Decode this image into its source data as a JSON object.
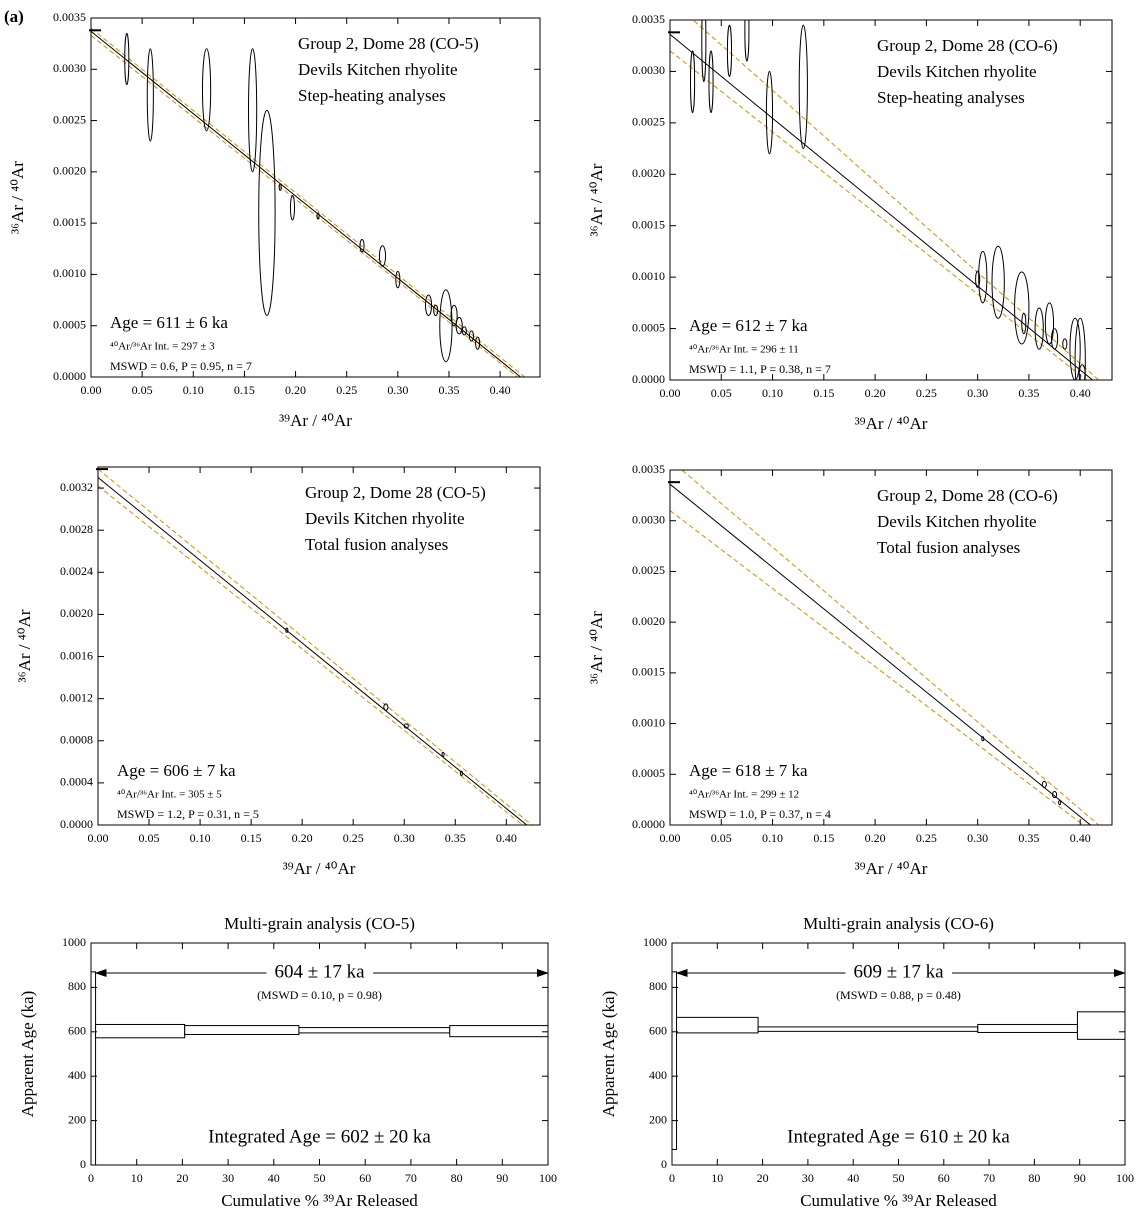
{
  "panel_label": "(a)",
  "chart_data": [
    {
      "type": "scatter",
      "titles": [
        "Group 2, Dome 28 (CO-5)",
        "Devils Kitchen rhyolite",
        "Step-heating analyses"
      ],
      "age_text": "Age = 611 ± 6 ka",
      "intercept_text": "⁴⁰Ar/³⁶Ar Int. =  297 ± 3",
      "stats_text": "MSWD = 0.6, P = 0.95, n = 7",
      "x_label": "³⁹Ar / ⁴⁰Ar",
      "y_label": "³⁶Ar / ⁴⁰Ar",
      "x": [
        0.035,
        0.058,
        0.113,
        0.158,
        0.172,
        0.185,
        0.197,
        0.222,
        0.265,
        0.285,
        0.3,
        0.33,
        0.337,
        0.347,
        0.355,
        0.36,
        0.365,
        0.372,
        0.378
      ],
      "x_err": [
        0.002,
        0.003,
        0.004,
        0.004,
        0.008,
        0.001,
        0.002,
        0.001,
        0.002,
        0.003,
        0.002,
        0.003,
        0.002,
        0.006,
        0.003,
        0.003,
        0.002,
        0.002,
        0.002
      ],
      "y": [
        0.0031,
        0.00275,
        0.0028,
        0.0026,
        0.0016,
        0.00185,
        0.00165,
        0.00157,
        0.00128,
        0.00118,
        0.00095,
        0.0007,
        0.00065,
        0.0005,
        0.0006,
        0.0005,
        0.00045,
        0.0004,
        0.00033
      ],
      "y_err": [
        0.00025,
        0.00045,
        0.0004,
        0.0006,
        0.001,
        3e-05,
        0.00012,
        3e-05,
        6e-05,
        0.0001,
        8e-05,
        0.0001,
        5e-05,
        0.00035,
        0.0001,
        8e-05,
        4e-05,
        5e-05,
        6e-05
      ],
      "fit": {
        "y_intercept": 0.00337,
        "x_intercept": 0.42
      },
      "envelope": [
        {
          "y_intercept": 0.0034,
          "x_intercept": 0.424
        },
        {
          "y_intercept": 0.00333,
          "x_intercept": 0.417
        }
      ],
      "atmosphere": 0.00338,
      "fit_color": "#000000",
      "envelope_color": "#d4900a",
      "xlim": [
        0,
        0.439
      ],
      "ylim": [
        0,
        0.0035
      ],
      "xticks": [
        {
          "value": 0,
          "label": "0.00"
        },
        {
          "value": 0.05,
          "label": "0.05"
        },
        {
          "value": 0.1,
          "label": "0.10"
        },
        {
          "value": 0.15,
          "label": "0.15"
        },
        {
          "value": 0.2,
          "label": "0.20"
        },
        {
          "value": 0.25,
          "label": "0.25"
        },
        {
          "value": 0.3,
          "label": "0.30"
        },
        {
          "value": 0.35,
          "label": "0.35"
        },
        {
          "value": 0.4,
          "label": "0.40"
        }
      ],
      "yticks": [
        {
          "value": 0,
          "label": "0.0000"
        },
        {
          "value": 0.0005,
          "label": "0.0005"
        },
        {
          "value": 0.001,
          "label": "0.0010"
        },
        {
          "value": 0.0015,
          "label": "0.0015"
        },
        {
          "value": 0.002,
          "label": "0.0020"
        },
        {
          "value": 0.0025,
          "label": "0.0025"
        },
        {
          "value": 0.003,
          "label": "0.0030"
        },
        {
          "value": 0.0035,
          "label": "0.0035"
        }
      ]
    },
    {
      "type": "scatter",
      "titles": [
        "Group 2, Dome 28 (CO-6)",
        "Devils Kitchen rhyolite",
        "Step-heating analyses"
      ],
      "age_text": "Age = 612 ± 7 ka",
      "intercept_text": "⁴⁰Ar/³⁶Ar Int. =  296 ± 11",
      "stats_text": "MSWD = 1.1, P = 0.38, n = 7",
      "x_label": "³⁹Ar / ⁴⁰Ar",
      "y_label": "³⁶Ar / ⁴⁰Ar",
      "x": [
        0.022,
        0.033,
        0.04,
        0.058,
        0.075,
        0.097,
        0.13,
        0.3,
        0.305,
        0.32,
        0.343,
        0.345,
        0.36,
        0.37,
        0.375,
        0.385,
        0.395,
        0.4,
        0.402
      ],
      "x_err": [
        0.002,
        0.002,
        0.002,
        0.002,
        0.002,
        0.003,
        0.004,
        0.002,
        0.004,
        0.006,
        0.007,
        0.002,
        0.004,
        0.004,
        0.003,
        0.002,
        0.005,
        0.005,
        0.003
      ],
      "y": [
        0.0029,
        0.0033,
        0.0029,
        0.0032,
        0.0034,
        0.0026,
        0.00285,
        0.00098,
        0.001,
        0.00095,
        0.0007,
        0.00055,
        0.0005,
        0.00055,
        0.0004,
        0.00035,
        0.0003,
        0.0002,
        5e-05
      ],
      "y_err": [
        0.0003,
        0.0004,
        0.0003,
        0.00025,
        0.0003,
        0.0004,
        0.0006,
        8e-05,
        0.00025,
        0.00035,
        0.00035,
        0.0001,
        0.0002,
        0.0002,
        0.0001,
        5e-05,
        0.0003,
        0.0004,
        0.0001
      ],
      "fit": {
        "y_intercept": 0.00336,
        "x_intercept": 0.412
      },
      "envelope": [
        {
          "y_intercept": 0.0037,
          "x_intercept": 0.418
        },
        {
          "y_intercept": 0.0032,
          "x_intercept": 0.406
        }
      ],
      "atmosphere": 0.00338,
      "fit_color": "#000000",
      "envelope_color": "#d4900a",
      "xlim": [
        0,
        0.431
      ],
      "ylim": [
        0,
        0.0035
      ],
      "xticks": [
        {
          "value": 0,
          "label": "0.00"
        },
        {
          "value": 0.05,
          "label": "0.05"
        },
        {
          "value": 0.1,
          "label": "0.10"
        },
        {
          "value": 0.15,
          "label": "0.15"
        },
        {
          "value": 0.2,
          "label": "0.20"
        },
        {
          "value": 0.25,
          "label": "0.25"
        },
        {
          "value": 0.3,
          "label": "0.30"
        },
        {
          "value": 0.35,
          "label": "0.35"
        },
        {
          "value": 0.4,
          "label": "0.40"
        }
      ],
      "yticks": [
        {
          "value": 0,
          "label": "0.0000"
        },
        {
          "value": 0.0005,
          "label": "0.0005"
        },
        {
          "value": 0.001,
          "label": "0.0010"
        },
        {
          "value": 0.0015,
          "label": "0.0015"
        },
        {
          "value": 0.002,
          "label": "0.0020"
        },
        {
          "value": 0.0025,
          "label": "0.0025"
        },
        {
          "value": 0.003,
          "label": "0.0030"
        },
        {
          "value": 0.0035,
          "label": "0.0035"
        }
      ]
    },
    {
      "type": "scatter",
      "titles": [
        "Group 2, Dome 28 (CO-5)",
        "Devils Kitchen rhyolite",
        "Total fusion analyses"
      ],
      "age_text": "Age = 606 ± 7 ka",
      "intercept_text": "⁴⁰Ar/³⁶Ar Int. =  305 ± 5",
      "stats_text": "MSWD = 1.2, P = 0.31, n = 5",
      "x_label": "³⁹Ar / ⁴⁰Ar",
      "y_label": "³⁶Ar / ⁴⁰Ar",
      "x": [
        0.185,
        0.282,
        0.302,
        0.338,
        0.356
      ],
      "x_err": [
        0.001,
        0.002,
        0.002,
        0.001,
        0.001
      ],
      "y": [
        0.00185,
        0.00112,
        0.00094,
        0.00067,
        0.00049
      ],
      "y_err": [
        2e-05,
        3e-05,
        2e-05,
        2e-05,
        2e-05
      ],
      "fit": {
        "y_intercept": 0.0033,
        "x_intercept": 0.42
      },
      "envelope": [
        {
          "y_intercept": 0.00338,
          "x_intercept": 0.425
        },
        {
          "y_intercept": 0.00322,
          "x_intercept": 0.416
        }
      ],
      "atmosphere": 0.00338,
      "fit_color": "#000000",
      "envelope_color": "#d4900a",
      "xlim": [
        0,
        0.433
      ],
      "ylim": [
        0,
        0.0034
      ],
      "xticks": [
        {
          "value": 0,
          "label": "0.00"
        },
        {
          "value": 0.05,
          "label": "0.05"
        },
        {
          "value": 0.1,
          "label": "0.10"
        },
        {
          "value": 0.15,
          "label": "0.15"
        },
        {
          "value": 0.2,
          "label": "0.20"
        },
        {
          "value": 0.25,
          "label": "0.25"
        },
        {
          "value": 0.3,
          "label": "0.30"
        },
        {
          "value": 0.35,
          "label": "0.35"
        },
        {
          "value": 0.4,
          "label": "0.40"
        }
      ],
      "yticks": [
        {
          "value": 0,
          "label": "0.0000"
        },
        {
          "value": 0.0004,
          "label": "0.0004"
        },
        {
          "value": 0.0008,
          "label": "0.0008"
        },
        {
          "value": 0.0012,
          "label": "0.0012"
        },
        {
          "value": 0.0016,
          "label": "0.0016"
        },
        {
          "value": 0.002,
          "label": "0.0020"
        },
        {
          "value": 0.0024,
          "label": "0.0024"
        },
        {
          "value": 0.0028,
          "label": "0.0028"
        },
        {
          "value": 0.0032,
          "label": "0.0032"
        }
      ]
    },
    {
      "type": "scatter",
      "titles": [
        "Group 2, Dome 28 (CO-6)",
        "Devils Kitchen rhyolite",
        "Total fusion analyses"
      ],
      "age_text": "Age = 618 ± 7 ka",
      "intercept_text": "⁴⁰Ar/³⁶Ar Int. =  299 ± 12",
      "stats_text": "MSWD = 1.0, P = 0.37, n = 4",
      "x_label": "³⁹Ar / ⁴⁰Ar",
      "y_label": "³⁶Ar / ⁴⁰Ar",
      "x": [
        0.305,
        0.365,
        0.375,
        0.38
      ],
      "x_err": [
        0.001,
        0.002,
        0.002,
        0.001
      ],
      "y": [
        0.00085,
        0.0004,
        0.0003,
        0.00022
      ],
      "y_err": [
        2e-05,
        3e-05,
        3e-05,
        2e-05
      ],
      "fit": {
        "y_intercept": 0.00336,
        "x_intercept": 0.41
      },
      "envelope": [
        {
          "y_intercept": 0.0036,
          "x_intercept": 0.418
        },
        {
          "y_intercept": 0.0031,
          "x_intercept": 0.403
        }
      ],
      "atmosphere": 0.00338,
      "fit_color": "#000000",
      "envelope_color": "#d4900a",
      "xlim": [
        0,
        0.431
      ],
      "ylim": [
        0,
        0.0035
      ],
      "xticks": [
        {
          "value": 0,
          "label": "0.00"
        },
        {
          "value": 0.05,
          "label": "0.05"
        },
        {
          "value": 0.1,
          "label": "0.10"
        },
        {
          "value": 0.15,
          "label": "0.15"
        },
        {
          "value": 0.2,
          "label": "0.20"
        },
        {
          "value": 0.25,
          "label": "0.25"
        },
        {
          "value": 0.3,
          "label": "0.30"
        },
        {
          "value": 0.35,
          "label": "0.35"
        },
        {
          "value": 0.4,
          "label": "0.40"
        }
      ],
      "yticks": [
        {
          "value": 0,
          "label": "0.0000"
        },
        {
          "value": 0.0005,
          "label": "0.0005"
        },
        {
          "value": 0.001,
          "label": "0.0010"
        },
        {
          "value": 0.0015,
          "label": "0.0015"
        },
        {
          "value": 0.002,
          "label": "0.0020"
        },
        {
          "value": 0.0025,
          "label": "0.0025"
        },
        {
          "value": 0.003,
          "label": "0.0030"
        },
        {
          "value": 0.0035,
          "label": "0.0035"
        }
      ]
    },
    {
      "type": "step",
      "title": "Multi-grain analysis (CO-5)",
      "plateau_text": "604 ± 17 ka",
      "plateau_stats": "(MSWD = 0.10, p = 0.98)",
      "integrated_text": "Integrated Age = 602 ± 20 ka",
      "x_label": "Cumulative % ³⁹Ar Released",
      "y_label": "Apparent Age (ka)",
      "edges": [
        0,
        1,
        20.5,
        45.5,
        78.5,
        100
      ],
      "ages": [
        430,
        603,
        608,
        607,
        603
      ],
      "errors": [
        440,
        30,
        20,
        12,
        25
      ],
      "plateau_range": [
        1,
        100
      ],
      "xlim": [
        0,
        100
      ],
      "ylim": [
        0,
        1000
      ],
      "xticks": [
        0,
        10,
        20,
        30,
        40,
        50,
        60,
        70,
        80,
        90,
        100
      ],
      "yticks": [
        0,
        200,
        400,
        600,
        800,
        1000
      ]
    },
    {
      "type": "step",
      "title": "Multi-grain analysis (CO-6)",
      "plateau_text": "609 ± 17 ka",
      "plateau_stats": "(MSWD = 0.88, p = 0.48)",
      "integrated_text": "Integrated Age = 610 ± 20 ka",
      "x_label": "Cumulative % ³⁹Ar Released",
      "y_label": "Apparent Age (ka)",
      "edges": [
        0,
        1,
        19,
        67.5,
        89.5,
        100
      ],
      "ages": [
        470,
        630,
        612,
        615,
        628
      ],
      "errors": [
        400,
        35,
        10,
        18,
        62
      ],
      "plateau_range": [
        1,
        100
      ],
      "xlim": [
        0,
        100
      ],
      "ylim": [
        0,
        1000
      ],
      "xticks": [
        0,
        10,
        20,
        30,
        40,
        50,
        60,
        70,
        80,
        90,
        100
      ],
      "yticks": [
        0,
        200,
        400,
        600,
        800,
        1000
      ]
    }
  ]
}
